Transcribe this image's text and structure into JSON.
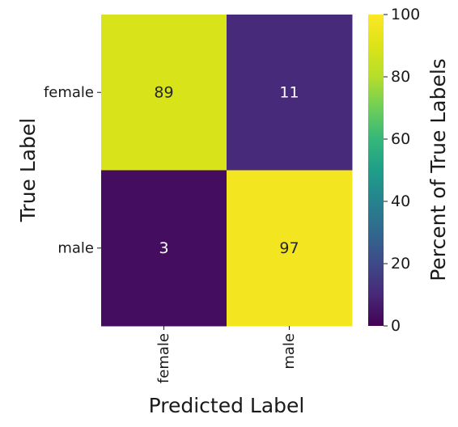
{
  "chart_data": {
    "type": "heatmap",
    "title": "",
    "row_labels": [
      "female",
      "male"
    ],
    "col_labels": [
      "female",
      "male"
    ],
    "values": [
      [
        89,
        11
      ],
      [
        3,
        97
      ]
    ],
    "xlabel": "Predicted Label",
    "ylabel": "True Label",
    "colorbar": {
      "label": "Percent of True Labels",
      "range": [
        0,
        100
      ],
      "ticks": [
        "0",
        "20",
        "40",
        "60",
        "80",
        "100"
      ],
      "colormap": "viridis"
    }
  }
}
